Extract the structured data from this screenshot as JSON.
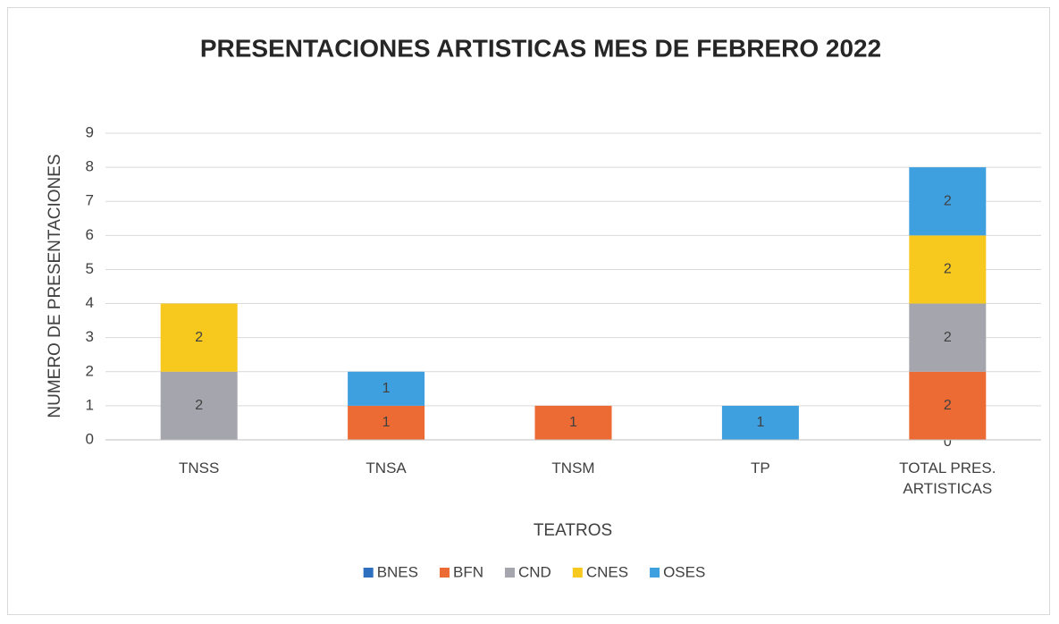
{
  "chart_data": {
    "type": "stacked_bar",
    "title": "PRESENTACIONES ARTISTICAS  MES DE FEBRERO 2022",
    "x_label": "TEATROS",
    "y_label": "NUMERO DE PRESENTACIONES",
    "categories": [
      "TNSS",
      "TNSA",
      "TNSM",
      "TP",
      "TOTAL  PRES. ARTISTICAS"
    ],
    "series": [
      {
        "name": "BNES",
        "color": "#2f6fc0",
        "values": [
          null,
          null,
          null,
          null,
          0
        ]
      },
      {
        "name": "BFN",
        "color": "#ec6b35",
        "values": [
          null,
          1,
          1,
          null,
          2
        ]
      },
      {
        "name": "CND",
        "color": "#a5a5ad",
        "values": [
          2,
          null,
          null,
          null,
          2
        ]
      },
      {
        "name": "CNES",
        "color": "#f7c81e",
        "values": [
          2,
          null,
          null,
          null,
          2
        ]
      },
      {
        "name": "OSES",
        "color": "#3fa0e0",
        "values": [
          null,
          1,
          null,
          1,
          2
        ]
      }
    ],
    "ylim": [
      0,
      9
    ],
    "yticks": [
      0,
      1,
      2,
      3,
      4,
      5,
      6,
      7,
      8,
      9
    ],
    "grid": true,
    "legend": "bottom"
  }
}
